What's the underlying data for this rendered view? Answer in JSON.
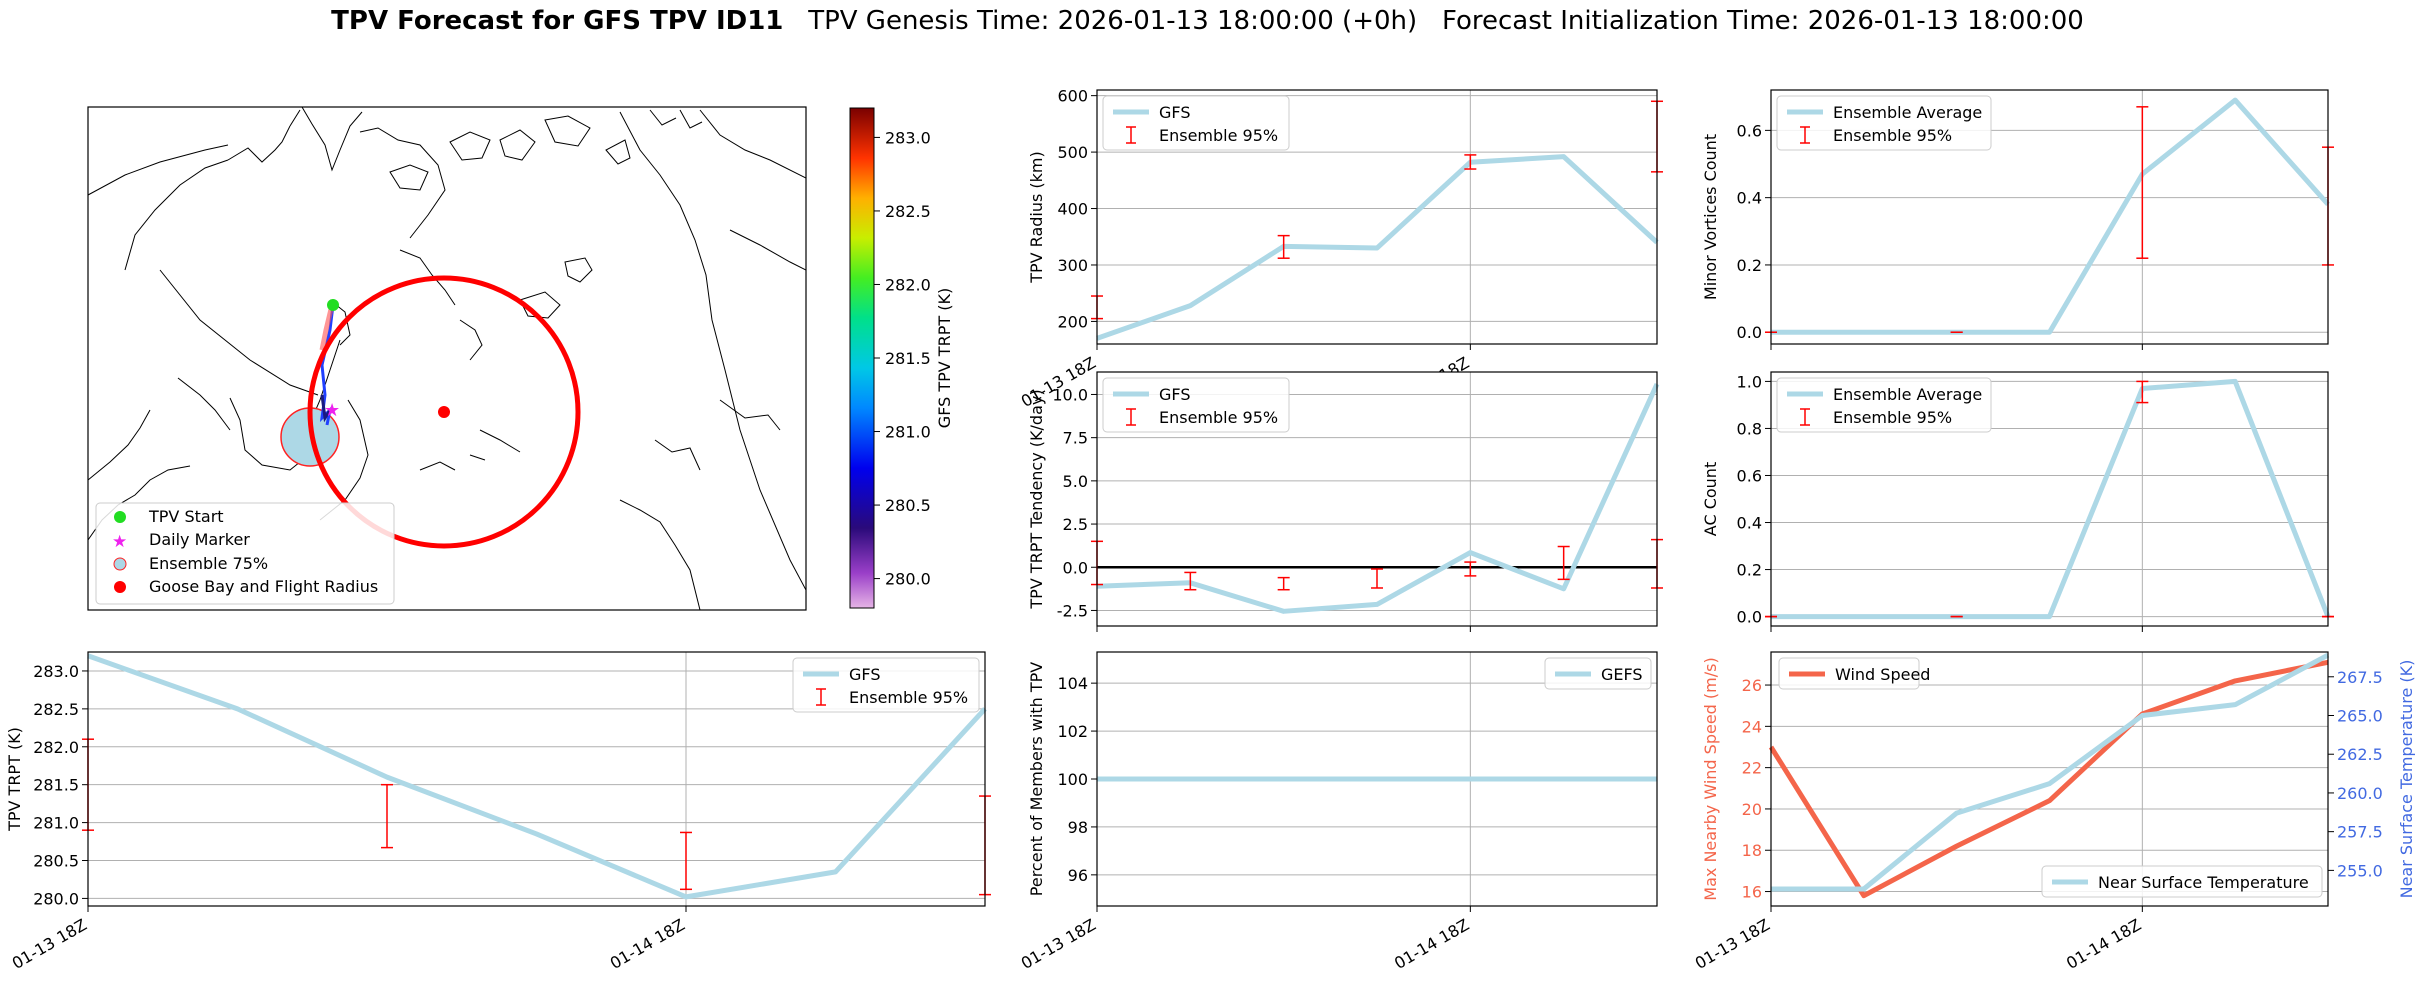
{
  "header": {
    "title_bold": "TPV Forecast for GFS TPV ID11",
    "genesis": "TPV Genesis Time: 2026-01-13 18:00:00 (+0h)",
    "init": "Forecast Initialization Time: 2026-01-13 18:00:00"
  },
  "map": {
    "legend": [
      "TPV Start",
      "Daily Marker",
      "Ensemble 75%",
      "Goose Bay and Flight Radius"
    ],
    "colorbar": {
      "label": "GFS TPV TRPT (K)",
      "ticks": [
        280.0,
        280.5,
        281.0,
        281.5,
        282.0,
        282.5,
        283.0
      ],
      "range": [
        279.8,
        283.2
      ]
    },
    "colors": {
      "start": "#22dd22",
      "daily": "#ee22ee",
      "ensemble_fill": "#add8e6",
      "goose_bay": "#ff0000"
    }
  },
  "chart_data": [
    {
      "id": "radius",
      "type": "line",
      "ylabel": "TPV Radius (km)",
      "x_ticks": [
        "01-13 18Z",
        "01-14 18Z"
      ],
      "x_tick_pos": [
        0,
        4
      ],
      "xlim": [
        0,
        6
      ],
      "ylim": [
        160,
        610
      ],
      "yticks": [
        200,
        300,
        400,
        500,
        600
      ],
      "series": [
        {
          "name": "GFS",
          "x": [
            0,
            1,
            2,
            3,
            4,
            5,
            6
          ],
          "values": [
            170,
            228,
            333,
            330,
            482,
            492,
            340
          ]
        }
      ],
      "error_bars": {
        "name": "Ensemble 95%",
        "x": [
          0,
          2,
          4,
          6
        ],
        "low": [
          205,
          312,
          470,
          465
        ],
        "high": [
          245,
          352,
          495,
          590
        ]
      },
      "legend": [
        "GFS",
        "Ensemble 95%"
      ],
      "legend_loc": "upper-left"
    },
    {
      "id": "minor",
      "type": "line",
      "ylabel": "Minor Vortices Count",
      "xlim": [
        0,
        6
      ],
      "ylim": [
        -0.035,
        0.72
      ],
      "yticks": [
        0.0,
        0.2,
        0.4,
        0.6
      ],
      "series": [
        {
          "name": "Ensemble Average",
          "x": [
            0,
            1,
            2,
            3,
            4,
            5,
            6
          ],
          "values": [
            0,
            0,
            0,
            0,
            0.47,
            0.69,
            0.38
          ]
        }
      ],
      "error_bars": {
        "name": "Ensemble 95%",
        "x": [
          0,
          2,
          4,
          6
        ],
        "low": [
          0,
          0,
          0.22,
          0.2
        ],
        "high": [
          0,
          0,
          0.67,
          0.55
        ]
      },
      "legend": [
        "Ensemble Average",
        "Ensemble 95%"
      ],
      "legend_loc": "upper-left"
    },
    {
      "id": "tendency",
      "type": "line",
      "ylabel": "TPV TRPT Tendency (K/day)",
      "xlim": [
        0,
        6
      ],
      "ylim": [
        -3.4,
        11.3
      ],
      "yticks": [
        -2.5,
        0.0,
        2.5,
        5.0,
        7.5,
        10.0
      ],
      "zero_line": true,
      "series": [
        {
          "name": "GFS",
          "x": [
            0,
            1,
            2,
            3,
            4,
            5,
            6
          ],
          "values": [
            -1.1,
            -0.9,
            -2.55,
            -2.15,
            0.85,
            -1.25,
            10.6
          ]
        }
      ],
      "error_bars": {
        "name": "Ensemble 95%",
        "x": [
          0,
          1,
          2,
          3,
          4,
          5,
          6
        ],
        "low": [
          -1.0,
          -1.3,
          -1.3,
          -1.2,
          -0.5,
          -0.7,
          -1.2
        ],
        "high": [
          1.5,
          -0.3,
          -0.6,
          -0.1,
          0.3,
          1.2,
          1.6
        ]
      },
      "legend": [
        "GFS",
        "Ensemble 95%"
      ],
      "legend_loc": "upper-left"
    },
    {
      "id": "ac",
      "type": "line",
      "ylabel": "AC Count",
      "xlim": [
        0,
        6
      ],
      "ylim": [
        -0.04,
        1.04
      ],
      "yticks": [
        0.0,
        0.2,
        0.4,
        0.6,
        0.8,
        1.0
      ],
      "series": [
        {
          "name": "Ensemble Average",
          "x": [
            0,
            1,
            2,
            3,
            4,
            5,
            6
          ],
          "values": [
            0,
            0,
            0,
            0,
            0.97,
            1.0,
            0
          ]
        }
      ],
      "error_bars": {
        "name": "Ensemble 95%",
        "x": [
          0,
          2,
          4,
          6
        ],
        "low": [
          0,
          0,
          0.91,
          0
        ],
        "high": [
          0,
          0,
          1.0,
          0
        ]
      },
      "legend": [
        "Ensemble Average",
        "Ensemble 95%"
      ],
      "legend_loc": "upper-left"
    },
    {
      "id": "trpt",
      "type": "line",
      "ylabel": "TPV TRPT (K)",
      "x_ticks": [
        "01-13 18Z",
        "01-14 18Z"
      ],
      "x_tick_pos": [
        0,
        4
      ],
      "xlim": [
        0,
        6
      ],
      "ylim": [
        279.9,
        283.25
      ],
      "yticks": [
        280.0,
        280.5,
        281.0,
        281.5,
        282.0,
        282.5,
        283.0
      ],
      "series": [
        {
          "name": "GFS",
          "x": [
            0,
            1,
            2,
            3,
            4,
            5,
            6
          ],
          "values": [
            283.2,
            282.5,
            281.6,
            280.85,
            280.02,
            280.35,
            282.5
          ]
        }
      ],
      "error_bars": {
        "name": "Ensemble 95%",
        "x": [
          0,
          2,
          4,
          6
        ],
        "low": [
          280.9,
          280.67,
          280.12,
          280.05
        ],
        "high": [
          282.1,
          281.5,
          280.87,
          281.35
        ]
      },
      "legend": [
        "GFS",
        "Ensemble 95%"
      ],
      "legend_loc": "upper-right"
    },
    {
      "id": "percent",
      "type": "line",
      "ylabel": "Percent of Members with TPV",
      "x_ticks": [
        "01-13 18Z",
        "01-14 18Z"
      ],
      "x_tick_pos": [
        0,
        4
      ],
      "xlim": [
        0,
        6
      ],
      "ylim": [
        94.7,
        105.3
      ],
      "yticks": [
        96,
        98,
        100,
        102,
        104
      ],
      "series": [
        {
          "name": "GEFS",
          "x": [
            0,
            1,
            2,
            3,
            4,
            5,
            6
          ],
          "values": [
            100,
            100,
            100,
            100,
            100,
            100,
            100
          ]
        }
      ],
      "legend": [
        "GEFS"
      ],
      "legend_loc": "upper-right"
    },
    {
      "id": "wind",
      "type": "line",
      "ylabel": "Max Nearby Wind Speed (m/s)",
      "ylabel_right": "Near Surface Temperature (K)",
      "x_ticks": [
        "01-13 18Z",
        "01-14 18Z"
      ],
      "x_tick_pos": [
        0,
        4
      ],
      "xlim": [
        0,
        6
      ],
      "ylim": [
        15.3,
        27.6
      ],
      "yticks": [
        16,
        18,
        20,
        22,
        24,
        26
      ],
      "ylim_right": [
        252.7,
        269.1
      ],
      "yticks_right": [
        255.0,
        257.5,
        260.0,
        262.5,
        265.0,
        267.5
      ],
      "series": [
        {
          "name": "Wind Speed",
          "axis": "left",
          "x": [
            0,
            1,
            2,
            3,
            4,
            5,
            6
          ],
          "values": [
            23.0,
            15.8,
            18.2,
            20.4,
            24.6,
            26.2,
            27.1
          ]
        },
        {
          "name": "Near Surface Temperature",
          "axis": "right",
          "x": [
            0,
            1,
            2,
            3,
            4,
            5,
            6
          ],
          "values": [
            253.8,
            253.8,
            258.7,
            260.6,
            265.0,
            265.7,
            268.9
          ]
        }
      ],
      "legend": [
        "Wind Speed",
        "Near Surface Temperature"
      ],
      "legend_loc": "upper-left / lower-right"
    }
  ],
  "colors": {
    "series": "#add8e6",
    "error": "#ff0000",
    "wind": "#f4654a",
    "temp_axis": "#4169e1",
    "grid": "#b0b0b0"
  }
}
